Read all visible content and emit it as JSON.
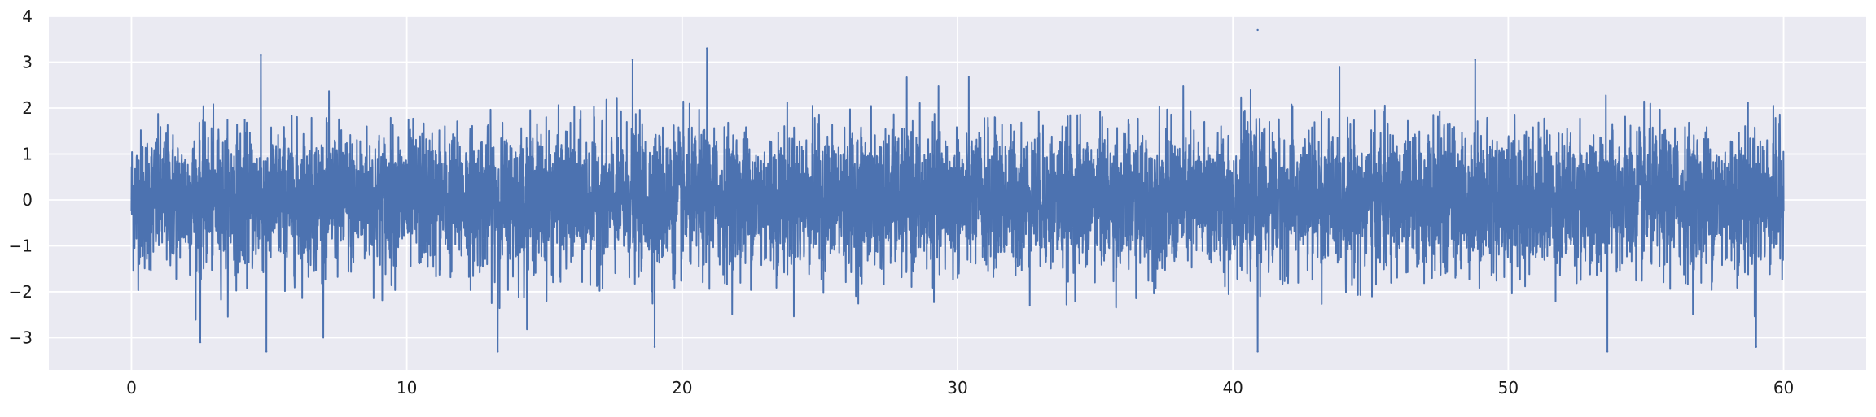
{
  "chart_data": {
    "type": "line",
    "title": "",
    "xlabel": "",
    "ylabel": "",
    "xlim": [
      -3,
      63
    ],
    "ylim": [
      -3.7,
      4.0
    ],
    "x_ticks": [
      0,
      10,
      20,
      30,
      40,
      50,
      60
    ],
    "x_tick_labels": [
      "0",
      "10",
      "20",
      "30",
      "40",
      "50",
      "60"
    ],
    "y_ticks": [
      4,
      3,
      2,
      1,
      0,
      -1,
      -2,
      -3
    ],
    "y_tick_labels": [
      "4",
      "3",
      "2",
      "1",
      "0",
      "−1",
      "−2",
      "−3"
    ],
    "grid": true,
    "legend": "none",
    "background_color": "#eaeaf2",
    "grid_color": "#ffffff",
    "series": [
      {
        "color": "#4c72b0",
        "x_range": [
          0,
          60
        ],
        "mean": 0,
        "std": 0.75,
        "notable_peaks": [
          {
            "x": 4.7,
            "y": 3.15
          },
          {
            "x": 18.2,
            "y": 3.05
          },
          {
            "x": 20.9,
            "y": 3.3
          },
          {
            "x": 40.9,
            "y": 3.7
          },
          {
            "x": 48.8,
            "y": 3.05
          }
        ],
        "notable_troughs": [
          {
            "x": 2.5,
            "y": -3.1
          },
          {
            "x": 4.9,
            "y": -3.3
          },
          {
            "x": 13.3,
            "y": -3.3
          },
          {
            "x": 19.0,
            "y": -3.2
          },
          {
            "x": 40.9,
            "y": -3.3
          },
          {
            "x": 53.6,
            "y": -3.3
          },
          {
            "x": 59.0,
            "y": -3.2
          }
        ]
      }
    ]
  }
}
